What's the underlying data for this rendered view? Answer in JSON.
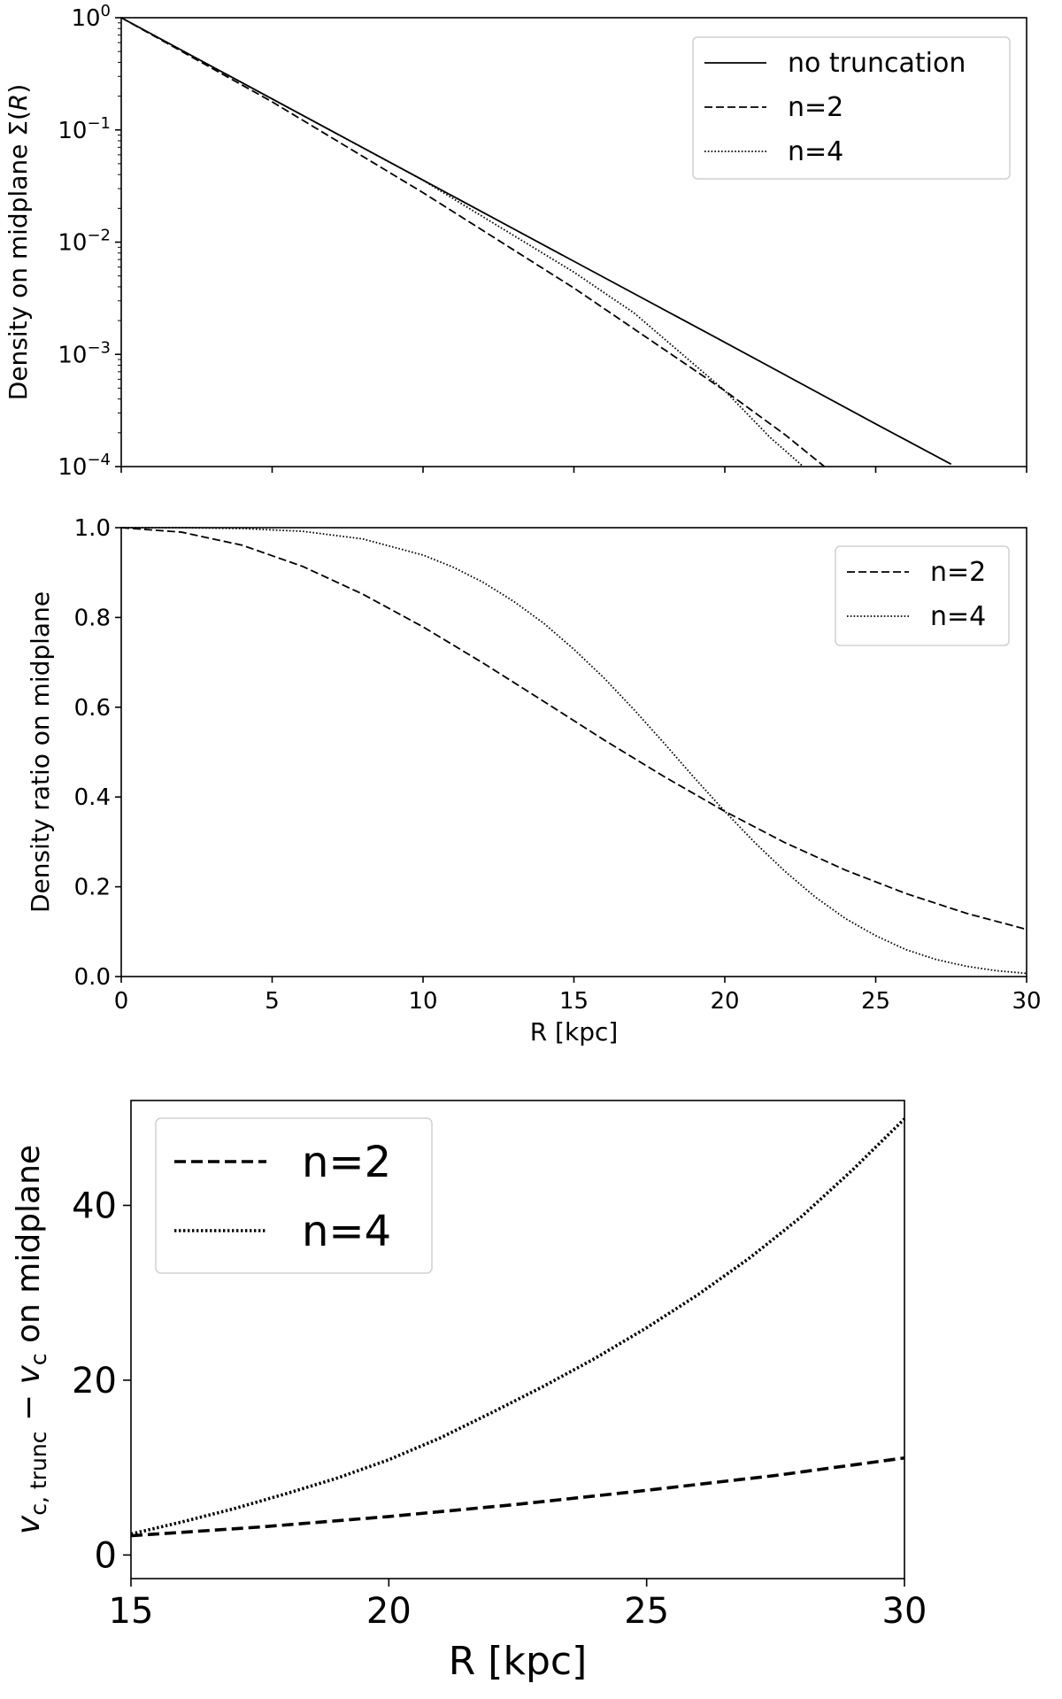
{
  "chart_data": [
    {
      "type": "line",
      "yscale": "log",
      "xlim": [
        0,
        30
      ],
      "ylim": [
        0.0001,
        1
      ],
      "xlabel": "",
      "ylabel": "Density on midplane Σ(R)",
      "xticks": [
        0,
        5,
        10,
        15,
        20,
        25,
        30
      ],
      "ytick_labels": [
        {
          "value": 1,
          "base": "10",
          "exp": "0"
        },
        {
          "value": 0.1,
          "base": "10",
          "exp": "−1"
        },
        {
          "value": 0.01,
          "base": "10",
          "exp": "−2"
        },
        {
          "value": 0.001,
          "base": "10",
          "exp": "−3"
        },
        {
          "value": 0.0001,
          "base": "10",
          "exp": "−4"
        }
      ],
      "legend_position": "top-right",
      "series": [
        {
          "name": "no truncation",
          "style": "solid",
          "x": [
            0,
            5,
            10,
            15,
            20,
            25,
            27.5
          ],
          "y": [
            1,
            0.189,
            0.0357,
            0.00675,
            0.00128,
            0.00024,
            0.000105
          ]
        },
        {
          "name": "n=2",
          "style": "dashed",
          "x": [
            0,
            5,
            10,
            15,
            20,
            22,
            23.3
          ],
          "y": [
            1,
            0.178,
            0.0276,
            0.0039,
            0.000474,
            0.000192,
            0.0001
          ]
        },
        {
          "name": "n=4",
          "style": "dotted",
          "x": [
            0,
            5,
            10,
            15,
            17,
            20,
            21.5,
            22.6
          ],
          "y": [
            1,
            0.189,
            0.0356,
            0.0054,
            0.00233,
            0.000474,
            0.000182,
            0.0001
          ]
        }
      ]
    },
    {
      "type": "line",
      "xlim": [
        0,
        30
      ],
      "ylim": [
        0,
        1
      ],
      "xlabel": "R [kpc]",
      "ylabel": "Density ratio on midplane",
      "xticks": [
        0,
        5,
        10,
        15,
        20,
        25,
        30
      ],
      "yticks": [
        "0.0",
        "0.2",
        "0.4",
        "0.6",
        "0.8",
        "1.0"
      ],
      "legend_position": "top-right",
      "series": [
        {
          "name": "n=2",
          "style": "dashed",
          "x": [
            0,
            2,
            4,
            6,
            8,
            10,
            12,
            14,
            16,
            18,
            20,
            22,
            24,
            26,
            28,
            30
          ],
          "y": [
            1.0,
            0.99,
            0.961,
            0.914,
            0.852,
            0.779,
            0.698,
            0.613,
            0.527,
            0.445,
            0.368,
            0.298,
            0.237,
            0.185,
            0.141,
            0.105
          ]
        },
        {
          "name": "n=4",
          "style": "dotted",
          "x": [
            0,
            2,
            4,
            6,
            8,
            10,
            11,
            12,
            13,
            14,
            15,
            16,
            17,
            18,
            19,
            20,
            21,
            22,
            23,
            24,
            25,
            26,
            27,
            28,
            29,
            30
          ],
          "y": [
            1.0,
            1.0,
            0.998,
            0.992,
            0.975,
            0.939,
            0.912,
            0.878,
            0.836,
            0.787,
            0.729,
            0.665,
            0.594,
            0.519,
            0.442,
            0.368,
            0.298,
            0.234,
            0.177,
            0.129,
            0.091,
            0.06,
            0.038,
            0.023,
            0.013,
            0.007
          ]
        }
      ]
    },
    {
      "type": "line",
      "xlim": [
        15,
        30
      ],
      "ylim": [
        -2.7,
        52
      ],
      "xlabel": "R [kpc]",
      "ylabel_main": "v",
      "ylabel_sub1": "c, trunc",
      "ylabel_minus": " − ",
      "ylabel_sub2": "c",
      "ylabel_tail": " on midplane",
      "xticks": [
        15,
        20,
        25,
        30
      ],
      "yticks": [
        0,
        20,
        40
      ],
      "legend_position": "top-left",
      "series": [
        {
          "name": "n=2",
          "style": "dashed",
          "x": [
            15,
            17.5,
            20,
            22.5,
            25,
            27.5,
            30
          ],
          "y": [
            2.2,
            3.2,
            4.4,
            5.8,
            7.4,
            9.1,
            11.1
          ]
        },
        {
          "name": "n=4",
          "style": "dotted",
          "x": [
            15,
            16,
            17,
            18,
            19,
            20,
            21,
            22,
            23,
            24,
            25,
            26,
            27,
            28,
            29,
            30
          ],
          "y": [
            2.4,
            3.8,
            5.3,
            7.0,
            8.8,
            10.9,
            13.4,
            16.3,
            19.3,
            22.5,
            26.0,
            29.8,
            34.0,
            38.7,
            44.1,
            49.9
          ]
        }
      ]
    }
  ]
}
